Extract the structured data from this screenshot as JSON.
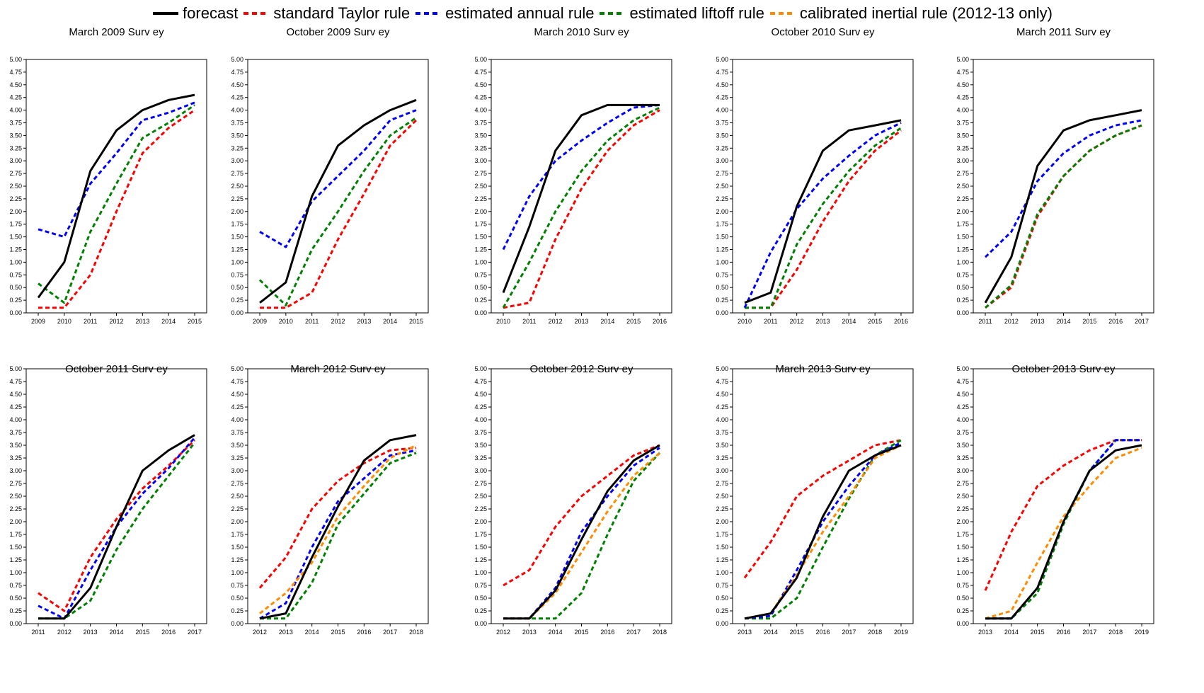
{
  "legend": [
    {
      "name": "forecast",
      "color": "#000000",
      "dash": false
    },
    {
      "name": "standard Taylor rule",
      "color": "#ff0000",
      "dash": true
    },
    {
      "name": "estimated annual rule",
      "color": "#0000ff",
      "dash": true
    },
    {
      "name": "estimated liftoff rule",
      "color": "#008000",
      "dash": true
    },
    {
      "name": "calibrated inertial rule (2012-13 only)",
      "color": "#ff8c00",
      "dash": true
    }
  ],
  "chart_data": [
    {
      "type": "line",
      "title": "March 2009 Surv ey",
      "x": [
        "2009",
        "2010",
        "2011",
        "2012",
        "2013",
        "2014",
        "2015"
      ],
      "ylim": [
        0,
        5
      ],
      "yticks": [
        "0.00",
        "0.25",
        "0.50",
        "0.75",
        "1.00",
        "1.25",
        "1.50",
        "1.75",
        "2.00",
        "2.25",
        "2.50",
        "2.75",
        "3.00",
        "3.25",
        "3.50",
        "3.75",
        "4.00",
        "4.25",
        "4.50",
        "4.75",
        "5.00"
      ],
      "series": [
        {
          "name": "forecast",
          "values": [
            0.3,
            1.0,
            2.8,
            3.6,
            4.0,
            4.2,
            4.3
          ]
        },
        {
          "name": "standard Taylor rule",
          "values": [
            0.1,
            0.1,
            0.75,
            2.0,
            3.15,
            3.65,
            4.0
          ]
        },
        {
          "name": "estimated annual rule",
          "values": [
            1.65,
            1.5,
            2.55,
            3.15,
            3.8,
            3.95,
            4.15
          ]
        },
        {
          "name": "estimated liftoff rule",
          "values": [
            0.58,
            0.2,
            1.6,
            2.55,
            3.45,
            3.75,
            4.1
          ]
        }
      ]
    },
    {
      "type": "line",
      "title": "October 2009 Surv ey",
      "x": [
        "2009",
        "2010",
        "2011",
        "2012",
        "2013",
        "2014",
        "2015"
      ],
      "ylim": [
        0,
        5
      ],
      "yticks": [
        "0.00",
        "0.25",
        "0.50",
        "0.75",
        "1.00",
        "1.25",
        "1.50",
        "1.75",
        "2.00",
        "2.25",
        "2.50",
        "2.75",
        "3.00",
        "3.25",
        "3.50",
        "3.75",
        "4.00",
        "4.25",
        "4.50",
        "4.75",
        "5.00"
      ],
      "series": [
        {
          "name": "forecast",
          "values": [
            0.2,
            0.6,
            2.3,
            3.3,
            3.7,
            4.0,
            4.2
          ]
        },
        {
          "name": "standard Taylor rule",
          "values": [
            0.1,
            0.1,
            0.4,
            1.45,
            2.35,
            3.3,
            3.8
          ]
        },
        {
          "name": "estimated annual rule",
          "values": [
            1.6,
            1.3,
            2.2,
            2.7,
            3.2,
            3.8,
            4.0
          ]
        },
        {
          "name": "estimated liftoff rule",
          "values": [
            0.65,
            0.15,
            1.25,
            2.0,
            2.8,
            3.5,
            3.85
          ]
        }
      ]
    },
    {
      "type": "line",
      "title": "March 2010 Surv ey",
      "x": [
        "2010",
        "2011",
        "2012",
        "2013",
        "2014",
        "2015",
        "2016"
      ],
      "ylim": [
        0,
        5
      ],
      "yticks": [
        "0.00",
        "0.25",
        "0.50",
        "0.75",
        "1.00",
        "1.25",
        "1.50",
        "1.75",
        "2.00",
        "2.25",
        "2.50",
        "2.75",
        "3.00",
        "3.25",
        "3.50",
        "3.75",
        "4.00",
        "4.25",
        "4.50",
        "4.75",
        "5.00"
      ],
      "series": [
        {
          "name": "forecast",
          "values": [
            0.4,
            1.7,
            3.2,
            3.9,
            4.1,
            4.1,
            4.1
          ]
        },
        {
          "name": "standard Taylor rule",
          "values": [
            0.1,
            0.2,
            1.45,
            2.45,
            3.2,
            3.7,
            4.0
          ]
        },
        {
          "name": "estimated annual rule",
          "values": [
            1.25,
            2.3,
            3.0,
            3.4,
            3.75,
            4.05,
            4.1
          ]
        },
        {
          "name": "estimated liftoff rule",
          "values": [
            0.1,
            1.0,
            2.0,
            2.8,
            3.4,
            3.8,
            4.05
          ]
        }
      ]
    },
    {
      "type": "line",
      "title": "October 2010 Surv ey",
      "x": [
        "2010",
        "2011",
        "2012",
        "2013",
        "2014",
        "2015",
        "2016"
      ],
      "ylim": [
        0,
        5
      ],
      "yticks": [
        "0.00",
        "0.25",
        "0.50",
        "0.75",
        "1.00",
        "1.25",
        "1.50",
        "1.75",
        "2.00",
        "2.25",
        "2.50",
        "2.75",
        "3.00",
        "3.25",
        "3.50",
        "3.75",
        "4.00",
        "4.25",
        "4.50",
        "4.75",
        "5.00"
      ],
      "series": [
        {
          "name": "forecast",
          "values": [
            0.2,
            0.4,
            2.1,
            3.2,
            3.6,
            3.7,
            3.8
          ]
        },
        {
          "name": "standard Taylor rule",
          "values": [
            0.1,
            0.1,
            0.85,
            1.8,
            2.6,
            3.2,
            3.6
          ]
        },
        {
          "name": "estimated annual rule",
          "values": [
            0.1,
            1.2,
            2.05,
            2.65,
            3.1,
            3.5,
            3.75
          ]
        },
        {
          "name": "estimated liftoff rule",
          "values": [
            0.1,
            0.1,
            1.35,
            2.15,
            2.8,
            3.3,
            3.65
          ]
        }
      ]
    },
    {
      "type": "line",
      "title": "March 2011 Surv ey",
      "x": [
        "2011",
        "2012",
        "2013",
        "2014",
        "2015",
        "2016",
        "2017"
      ],
      "ylim": [
        0,
        5
      ],
      "yticks": [
        "0.00",
        "0.25",
        "0.50",
        "0.75",
        "1.00",
        "1.25",
        "1.50",
        "1.75",
        "2.00",
        "2.25",
        "2.50",
        "2.75",
        "3.00",
        "3.25",
        "3.50",
        "3.75",
        "4.00",
        "4.25",
        "4.50",
        "4.75",
        "5.00"
      ],
      "series": [
        {
          "name": "forecast",
          "values": [
            0.2,
            1.1,
            2.9,
            3.6,
            3.8,
            3.9,
            4.0
          ]
        },
        {
          "name": "standard Taylor rule",
          "values": [
            0.1,
            0.5,
            1.9,
            2.7,
            3.2,
            3.5,
            3.7
          ]
        },
        {
          "name": "estimated annual rule",
          "values": [
            1.1,
            1.6,
            2.6,
            3.15,
            3.5,
            3.7,
            3.8
          ]
        },
        {
          "name": "estimated liftoff rule",
          "values": [
            0.1,
            0.55,
            1.95,
            2.7,
            3.2,
            3.5,
            3.7
          ]
        }
      ]
    },
    {
      "type": "line",
      "title": "October 2011 Surv ey",
      "x": [
        "2011",
        "2012",
        "2013",
        "2014",
        "2015",
        "2016",
        "2017"
      ],
      "ylim": [
        0,
        5
      ],
      "yticks": [
        "0.00",
        "0.25",
        "0.50",
        "0.75",
        "1.00",
        "1.25",
        "1.50",
        "1.75",
        "2.00",
        "2.25",
        "2.50",
        "2.75",
        "3.00",
        "3.25",
        "3.50",
        "3.75",
        "4.00",
        "4.25",
        "4.50",
        "4.75",
        "5.00"
      ],
      "series": [
        {
          "name": "forecast",
          "values": [
            0.1,
            0.1,
            0.7,
            1.9,
            3.0,
            3.4,
            3.7
          ]
        },
        {
          "name": "standard Taylor rule",
          "values": [
            0.6,
            0.25,
            1.3,
            2.05,
            2.65,
            3.1,
            3.6
          ]
        },
        {
          "name": "estimated annual rule",
          "values": [
            0.35,
            0.1,
            1.05,
            1.9,
            2.55,
            3.05,
            3.65
          ]
        },
        {
          "name": "estimated liftoff rule",
          "values": [
            0.1,
            0.1,
            0.45,
            1.45,
            2.25,
            2.9,
            3.55
          ]
        }
      ]
    },
    {
      "type": "line",
      "title": "March 2012 Surv ey",
      "x": [
        "2012",
        "2013",
        "2014",
        "2015",
        "2016",
        "2017",
        "2018"
      ],
      "ylim": [
        0,
        5
      ],
      "yticks": [
        "0.00",
        "0.25",
        "0.50",
        "0.75",
        "1.00",
        "1.25",
        "1.50",
        "1.75",
        "2.00",
        "2.25",
        "2.50",
        "2.75",
        "3.00",
        "3.25",
        "3.50",
        "3.75",
        "4.00",
        "4.25",
        "4.50",
        "4.75",
        "5.00"
      ],
      "series": [
        {
          "name": "forecast",
          "values": [
            0.1,
            0.2,
            1.3,
            2.3,
            3.2,
            3.6,
            3.7
          ]
        },
        {
          "name": "standard Taylor rule",
          "values": [
            0.7,
            1.3,
            2.25,
            2.8,
            3.15,
            3.4,
            3.45
          ]
        },
        {
          "name": "estimated annual rule",
          "values": [
            0.1,
            0.4,
            1.5,
            2.4,
            2.85,
            3.3,
            3.4
          ]
        },
        {
          "name": "estimated liftoff rule",
          "values": [
            0.1,
            0.1,
            0.8,
            1.95,
            2.55,
            3.15,
            3.35
          ]
        },
        {
          "name": "calibrated inertial rule (2012-13 only)",
          "values": [
            0.2,
            0.6,
            1.2,
            2.1,
            2.7,
            3.25,
            3.5
          ]
        }
      ]
    },
    {
      "type": "line",
      "title": "October 2012 Surv ey",
      "x": [
        "2012",
        "2013",
        "2014",
        "2015",
        "2016",
        "2017",
        "2018"
      ],
      "ylim": [
        0,
        5
      ],
      "yticks": [
        "0.00",
        "0.25",
        "0.50",
        "0.75",
        "1.00",
        "1.25",
        "1.50",
        "1.75",
        "2.00",
        "2.25",
        "2.50",
        "2.75",
        "3.00",
        "3.25",
        "3.50",
        "3.75",
        "4.00",
        "4.25",
        "4.50",
        "4.75",
        "5.00"
      ],
      "series": [
        {
          "name": "forecast",
          "values": [
            0.1,
            0.1,
            0.65,
            1.65,
            2.6,
            3.2,
            3.5
          ]
        },
        {
          "name": "standard Taylor rule",
          "values": [
            0.75,
            1.05,
            1.9,
            2.5,
            2.9,
            3.3,
            3.5
          ]
        },
        {
          "name": "estimated annual rule",
          "values": [
            0.1,
            0.1,
            0.7,
            1.8,
            2.5,
            3.1,
            3.45
          ]
        },
        {
          "name": "estimated liftoff rule",
          "values": [
            0.1,
            0.1,
            0.1,
            0.6,
            1.75,
            2.8,
            3.35
          ]
        },
        {
          "name": "calibrated inertial rule (2012-13 only)",
          "values": [
            0.1,
            0.1,
            0.6,
            1.4,
            2.2,
            2.9,
            3.35
          ]
        }
      ]
    },
    {
      "type": "line",
      "title": "March 2013 Surv ey",
      "x": [
        "2013",
        "2014",
        "2015",
        "2016",
        "2017",
        "2018",
        "2019"
      ],
      "ylim": [
        0,
        5
      ],
      "yticks": [
        "0.00",
        "0.25",
        "0.50",
        "0.75",
        "1.00",
        "1.25",
        "1.50",
        "1.75",
        "2.00",
        "2.25",
        "2.50",
        "2.75",
        "3.00",
        "3.25",
        "3.50",
        "3.75",
        "4.00",
        "4.25",
        "4.50",
        "4.75",
        "5.00"
      ],
      "series": [
        {
          "name": "forecast",
          "values": [
            0.1,
            0.2,
            0.9,
            2.1,
            3.0,
            3.3,
            3.5
          ]
        },
        {
          "name": "standard Taylor rule",
          "values": [
            0.9,
            1.6,
            2.5,
            2.9,
            3.2,
            3.5,
            3.6
          ]
        },
        {
          "name": "estimated annual rule",
          "values": [
            0.1,
            0.15,
            1.05,
            2.0,
            2.7,
            3.3,
            3.55
          ]
        },
        {
          "name": "estimated liftoff rule",
          "values": [
            0.1,
            0.1,
            0.5,
            1.5,
            2.45,
            3.3,
            3.6
          ]
        },
        {
          "name": "calibrated inertial rule (2012-13 only)",
          "values": [
            0.1,
            0.2,
            0.95,
            1.8,
            2.5,
            3.25,
            3.5
          ]
        }
      ]
    },
    {
      "type": "line",
      "title": "October 2013 Surv ey",
      "x": [
        "2013",
        "2014",
        "2015",
        "2016",
        "2017",
        "2018",
        "2019"
      ],
      "ylim": [
        0,
        5
      ],
      "yticks": [
        "0.00",
        "0.25",
        "0.50",
        "0.75",
        "1.00",
        "1.25",
        "1.50",
        "1.75",
        "2.00",
        "2.25",
        "2.50",
        "2.75",
        "3.00",
        "3.25",
        "3.50",
        "3.75",
        "4.00",
        "4.25",
        "4.50",
        "4.75",
        "5.00"
      ],
      "series": [
        {
          "name": "forecast",
          "values": [
            0.1,
            0.1,
            0.7,
            2.0,
            3.0,
            3.4,
            3.5
          ]
        },
        {
          "name": "standard Taylor rule",
          "values": [
            0.65,
            1.8,
            2.7,
            3.1,
            3.4,
            3.6,
            3.6
          ]
        },
        {
          "name": "estimated annual rule",
          "values": [
            0.1,
            0.1,
            0.7,
            2.0,
            3.0,
            3.6,
            3.6
          ]
        },
        {
          "name": "estimated liftoff rule",
          "values": [
            0.1,
            0.1,
            0.6,
            1.95,
            3.0,
            3.6,
            3.6
          ]
        },
        {
          "name": "calibrated inertial rule (2012-13 only)",
          "values": [
            0.1,
            0.25,
            1.2,
            2.1,
            2.7,
            3.25,
            3.45
          ]
        }
      ]
    }
  ]
}
